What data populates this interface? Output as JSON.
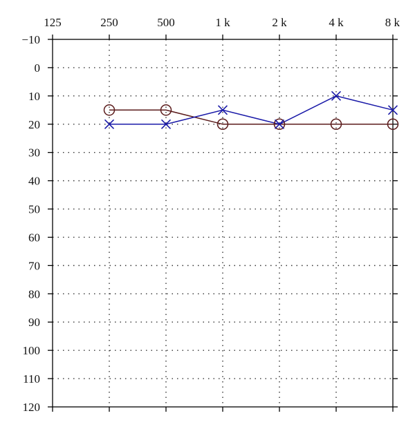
{
  "chart_data": {
    "type": "line",
    "title": "",
    "xlabel": "",
    "ylabel": "",
    "x_scale": "log2",
    "y_inverted": true,
    "grid": "dotted",
    "x": [
      125,
      250,
      500,
      1000,
      2000,
      4000,
      8000
    ],
    "x_tick_labels": [
      "125",
      "250",
      "500",
      "1 k",
      "2 k",
      "4 k",
      "8 k"
    ],
    "y_ticks": [
      -10,
      0,
      10,
      20,
      30,
      40,
      50,
      60,
      70,
      80,
      90,
      100,
      110,
      120
    ],
    "y_tick_labels": [
      "−10",
      "0",
      "10",
      "20",
      "30",
      "40",
      "50",
      "60",
      "70",
      "80",
      "90",
      "100",
      "110",
      "120"
    ],
    "ylim": [
      -10,
      120
    ],
    "series": [
      {
        "marker": "o",
        "color": "#5a1a1a",
        "x": [
          250,
          500,
          1000,
          2000,
          4000,
          8000
        ],
        "values": [
          15,
          15,
          20,
          20,
          20,
          20
        ]
      },
      {
        "marker": "x",
        "color": "#1a1aa8",
        "x": [
          250,
          500,
          1000,
          2000,
          4000,
          8000
        ],
        "values": [
          20,
          20,
          15,
          20,
          10,
          15
        ]
      }
    ]
  }
}
